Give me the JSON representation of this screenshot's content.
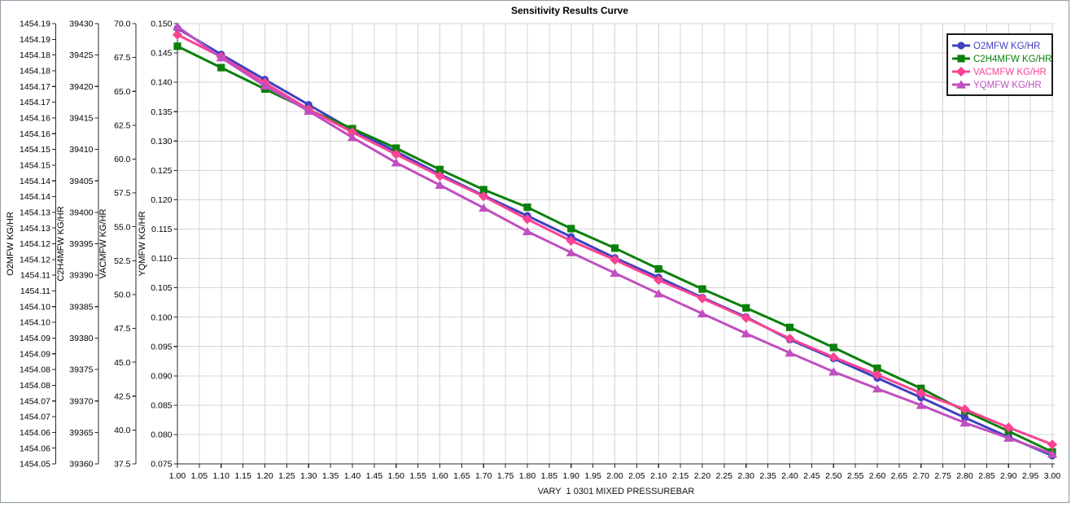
{
  "chart_data": {
    "type": "line",
    "title": "Sensitivity Results Curve",
    "xlabel": "VARY  1 0301 MIXED PRESSUREBAR",
    "grid": true,
    "legend_position": "top-right",
    "x_range": [
      1.0,
      3.0
    ],
    "x_tick_labels": [
      "1.00",
      "1.05",
      "1.10",
      "1.15",
      "1.20",
      "1.25",
      "1.30",
      "1.35",
      "1.40",
      "1.45",
      "1.50",
      "1.55",
      "1.60",
      "1.65",
      "1.70",
      "1.75",
      "1.80",
      "1.85",
      "1.90",
      "1.95",
      "2.00",
      "2.05",
      "2.10",
      "2.15",
      "2.20",
      "2.25",
      "2.30",
      "2.35",
      "2.40",
      "2.45",
      "2.50",
      "2.55",
      "2.60",
      "2.65",
      "2.70",
      "2.75",
      "2.80",
      "2.85",
      "2.90",
      "2.95",
      "3.00"
    ],
    "y_axes": [
      {
        "title": "O2MFW KG/HR",
        "range": [
          1454.05,
          1454.19
        ],
        "tick_labels": [
          "1454.19",
          "1454.19",
          "1454.18",
          "1454.18",
          "1454.17",
          "1454.17",
          "1454.16",
          "1454.16",
          "1454.15",
          "1454.15",
          "1454.14",
          "1454.14",
          "1454.13",
          "1454.13",
          "1454.12",
          "1454.12",
          "1454.11",
          "1454.11",
          "1454.10",
          "1454.10",
          "1454.09",
          "1454.09",
          "1454.08",
          "1454.08",
          "1454.07",
          "1454.07",
          "1454.06",
          "1454.06",
          "1454.05"
        ]
      },
      {
        "title": "C2H4MFW KG/HR",
        "range": [
          39360,
          39430
        ],
        "tick_labels": [
          "39430",
          "39425",
          "39420",
          "39415",
          "39410",
          "39405",
          "39400",
          "39395",
          "39390",
          "39385",
          "39380",
          "39375",
          "39370",
          "39365",
          "39360"
        ]
      },
      {
        "title": "VACMFW KG/HR",
        "range": [
          37.5,
          70.0
        ],
        "tick_labels": [
          "70.0",
          "67.5",
          "65.0",
          "62.5",
          "60.0",
          "57.5",
          "55.0",
          "52.5",
          "50.0",
          "47.5",
          "45.0",
          "42.5",
          "40.0",
          "37.5"
        ]
      },
      {
        "title": "YQMFW KG/HR",
        "range": [
          0.075,
          0.15
        ],
        "tick_labels": [
          "0.150",
          "0.145",
          "0.140",
          "0.135",
          "0.130",
          "0.125",
          "0.120",
          "0.115",
          "0.110",
          "0.105",
          "0.100",
          "0.095",
          "0.090",
          "0.085",
          "0.080",
          "0.075"
        ]
      }
    ],
    "x": [
      1.0,
      1.1,
      1.2,
      1.3,
      1.4,
      1.5,
      1.6,
      1.7,
      1.8,
      1.9,
      2.0,
      2.1,
      2.2,
      2.3,
      2.4,
      2.5,
      2.6,
      2.7,
      2.8,
      2.9,
      3.0
    ],
    "series": [
      {
        "name": "O2MFW KG/HR",
        "color": "#4040c0",
        "marker": "circle",
        "axis": 0,
        "values": [
          1454.1885,
          1454.1802,
          1454.1722,
          1454.1642,
          1454.1562,
          1454.1493,
          1454.1421,
          1454.1353,
          1454.1289,
          1454.1222,
          1454.1155,
          1454.1093,
          1454.1029,
          1454.0967,
          1454.0895,
          1454.0835,
          1454.0773,
          1454.0711,
          1454.0647,
          1454.0585,
          1454.0526
        ]
      },
      {
        "name": "C2H4MFW KG/HR",
        "color": "#0b800b",
        "marker": "square",
        "axis": 1,
        "values": [
          39426.4,
          39423.0,
          39419.6,
          39416.3,
          39413.3,
          39410.2,
          39406.8,
          39403.6,
          39400.8,
          39397.4,
          39394.3,
          39391.0,
          39387.8,
          39384.8,
          39381.7,
          39378.5,
          39375.2,
          39372.0,
          39368.4,
          39365.2,
          39361.9
        ]
      },
      {
        "name": "VACMFW KG/HR",
        "color": "#fa4394",
        "marker": "diamond",
        "axis": 2,
        "values": [
          69.18,
          67.56,
          65.63,
          63.67,
          61.98,
          60.35,
          58.75,
          57.25,
          55.56,
          53.96,
          52.56,
          51.07,
          49.71,
          48.27,
          46.75,
          45.38,
          44.08,
          42.72,
          41.53,
          40.19,
          38.93
        ]
      },
      {
        "name": "YQMFW KG/HR",
        "color": "#c04fc0",
        "marker": "triangle",
        "axis": 3,
        "values": [
          0.1495,
          0.1442,
          0.1394,
          0.1351,
          0.1306,
          0.1263,
          0.1225,
          0.1186,
          0.1146,
          0.111,
          0.1075,
          0.104,
          0.1006,
          0.0972,
          0.0939,
          0.0907,
          0.0878,
          0.085,
          0.082,
          0.0794,
          0.0767
        ]
      }
    ],
    "colors": {
      "grid": "#d5d5d5",
      "axis": "#2b2b2b",
      "tick_text": "#000000",
      "frame_border": "#97a0a9",
      "legend_border": "#000000",
      "legend_bg": "#ffffff"
    }
  }
}
